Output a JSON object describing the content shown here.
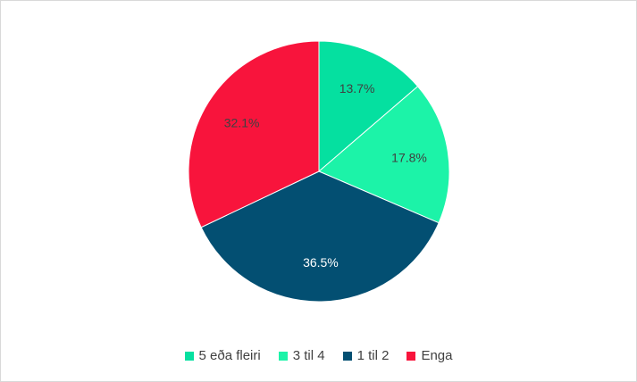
{
  "chart_data": {
    "type": "pie",
    "title": "",
    "series": [
      {
        "name": "5 eða fleiri",
        "value": 13.7,
        "label": "13.7%",
        "color": "#05e0a0"
      },
      {
        "name": "3 til 4",
        "value": 17.8,
        "label": "17.8%",
        "color": "#1cf3a8"
      },
      {
        "name": "1 til 2",
        "value": 36.5,
        "label": "36.5%",
        "color": "#034f72"
      },
      {
        "name": "Enga",
        "value": 32.1,
        "label": "32.1%",
        "color": "#f8143c"
      }
    ],
    "legend_position": "bottom",
    "start_angle": "12 o'clock",
    "direction": "clockwise"
  }
}
